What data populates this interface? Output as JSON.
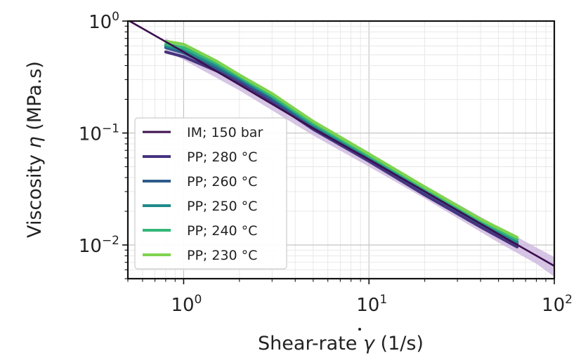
{
  "chart_data": {
    "type": "line",
    "xscale": "log",
    "yscale": "log",
    "xlim": [
      0.5,
      100
    ],
    "ylim": [
      0.005,
      1
    ],
    "x_ticks": [
      {
        "base": "10",
        "exp": "0"
      },
      {
        "base": "10",
        "exp": "1"
      },
      {
        "base": "10",
        "exp": "2"
      }
    ],
    "y_ticks": [
      {
        "base": "10",
        "exp": "0"
      },
      {
        "base": "10",
        "exp": "−1"
      },
      {
        "base": "10",
        "exp": "−2"
      }
    ],
    "xlabel": {
      "prefix": "Shear-rate ",
      "symbol": "γ",
      "suffix": " (1/s)"
    },
    "ylabel": {
      "prefix": "Viscosity ",
      "symbol": "η",
      "suffix": " (MPa.s)"
    },
    "grid": true,
    "legend_position": "lower-left",
    "series": [
      {
        "name": "IM; 150 bar",
        "color": "#3b0f4f",
        "band_color": "#c9b2dc",
        "x": [
          0.5,
          1,
          2,
          5,
          10,
          20,
          50,
          100
        ],
        "y": [
          1.02,
          0.53,
          0.27,
          0.11,
          0.058,
          0.03,
          0.0125,
          0.0065
        ],
        "band_x": [
          0.8,
          2,
          5,
          10,
          20,
          50,
          80,
          100
        ],
        "band_lo": [
          0.55,
          0.24,
          0.095,
          0.05,
          0.026,
          0.0105,
          0.0068,
          0.0052
        ],
        "band_hi": [
          0.7,
          0.3,
          0.125,
          0.066,
          0.034,
          0.0145,
          0.0095,
          0.0078
        ]
      },
      {
        "name": "PP; 280 °C",
        "color": "#463480",
        "x": [
          0.8,
          1,
          1.5,
          2,
          3,
          5,
          10,
          20,
          40,
          63
        ],
        "y": [
          0.53,
          0.48,
          0.36,
          0.28,
          0.19,
          0.108,
          0.056,
          0.028,
          0.0145,
          0.0096
        ]
      },
      {
        "name": "PP; 260 °C",
        "color": "#2e5b8b",
        "x": [
          0.8,
          1,
          1.5,
          2,
          3,
          5,
          10,
          20,
          40,
          63
        ],
        "y": [
          0.58,
          0.52,
          0.38,
          0.3,
          0.2,
          0.114,
          0.059,
          0.03,
          0.0155,
          0.0103
        ]
      },
      {
        "name": "PP; 250 °C",
        "color": "#1f8a8a",
        "x": [
          0.8,
          1,
          1.5,
          2,
          3,
          5,
          10,
          20,
          40,
          63
        ],
        "y": [
          0.6,
          0.55,
          0.4,
          0.31,
          0.21,
          0.118,
          0.061,
          0.031,
          0.016,
          0.0107
        ]
      },
      {
        "name": "PP; 240 °C",
        "color": "#35b779",
        "x": [
          0.8,
          1,
          1.5,
          2,
          3,
          5,
          10,
          20,
          40,
          63
        ],
        "y": [
          0.62,
          0.58,
          0.42,
          0.32,
          0.215,
          0.122,
          0.063,
          0.032,
          0.0165,
          0.0112
        ]
      },
      {
        "name": "PP; 230 °C",
        "color": "#7ed34f",
        "x": [
          0.8,
          1,
          1.5,
          2,
          3,
          5,
          10,
          20,
          40,
          63
        ],
        "y": [
          0.66,
          0.62,
          0.44,
          0.33,
          0.225,
          0.127,
          0.065,
          0.033,
          0.017,
          0.0117
        ]
      }
    ]
  }
}
